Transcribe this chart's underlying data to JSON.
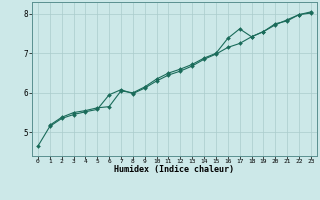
{
  "xlabel": "Humidex (Indice chaleur)",
  "ylabel": "",
  "bg_color": "#cce8e8",
  "line_color": "#1a6b5a",
  "grid_color": "#aacccc",
  "xlim": [
    -0.5,
    23.5
  ],
  "ylim": [
    4.4,
    8.3
  ],
  "yticks": [
    5,
    6,
    7,
    8
  ],
  "xticks": [
    0,
    1,
    2,
    3,
    4,
    5,
    6,
    7,
    8,
    9,
    10,
    11,
    12,
    13,
    14,
    15,
    16,
    17,
    18,
    19,
    20,
    21,
    22,
    23
  ],
  "line1_x": [
    0,
    1,
    2,
    3,
    4,
    5,
    6,
    7,
    8,
    9,
    10,
    11,
    12,
    13,
    14,
    15,
    16,
    17,
    18,
    19,
    20,
    21,
    22,
    23
  ],
  "line1_y": [
    4.65,
    5.15,
    5.35,
    5.45,
    5.52,
    5.58,
    5.95,
    6.08,
    5.98,
    6.12,
    6.3,
    6.45,
    6.55,
    6.68,
    6.85,
    6.98,
    7.15,
    7.25,
    7.42,
    7.55,
    7.72,
    7.85,
    7.98,
    8.05
  ],
  "line2_x": [
    1,
    2,
    3,
    4,
    5,
    6,
    7,
    8,
    9,
    10,
    11,
    12,
    13,
    14,
    15,
    16,
    17,
    18,
    19,
    20,
    21,
    22,
    23
  ],
  "line2_y": [
    5.18,
    5.38,
    5.5,
    5.55,
    5.62,
    5.65,
    6.05,
    6.0,
    6.15,
    6.35,
    6.5,
    6.6,
    6.72,
    6.88,
    7.0,
    7.38,
    7.62,
    7.42,
    7.55,
    7.75,
    7.82,
    7.98,
    8.02
  ]
}
